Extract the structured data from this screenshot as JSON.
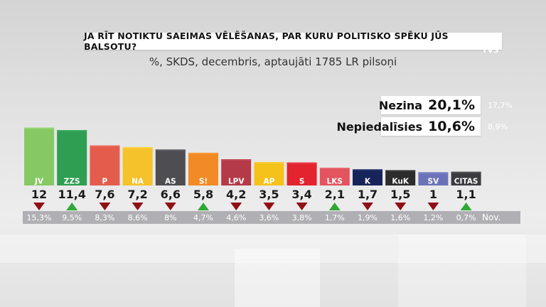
{
  "title": "JA RĪT NOTIKTU SAEIMAS VĒLĒŠANAS, PAR KURU POLITISKO SPĒKU JŪS BALSOTU?",
  "subtitle": "%, SKDS, decembris, aptaujāti 1785 LR pilsoņi",
  "logo": "TV3",
  "nezina": {
    "label": "Nezina",
    "value": "20,1%",
    "previous": "17,7%"
  },
  "nepiedalisies": {
    "label": "Nepiedalīsies",
    "value": "10,6%",
    "previous": "8,9%"
  },
  "prev_label": "Nov.",
  "colors": {
    "up": "#2fa834",
    "down": "#8f1116"
  },
  "chart_data": {
    "type": "bar",
    "categories": [
      "JV",
      "ZZS",
      "P",
      "NA",
      "AS",
      "S!",
      "LPV",
      "AP",
      "S",
      "LKS",
      "K",
      "KuK",
      "SV",
      "CITAS"
    ],
    "values": [
      12,
      11.4,
      7.6,
      7.2,
      6.6,
      5.8,
      4.2,
      3.5,
      3.4,
      2.1,
      1.7,
      1.5,
      1,
      1.1
    ],
    "value_labels": [
      "12",
      "11,4",
      "7,6",
      "7,2",
      "6,6",
      "5,8",
      "4,2",
      "3,5",
      "3,4",
      "2,1",
      "1,7",
      "1,5",
      "1",
      "1,1"
    ],
    "previous_labels": [
      "15,3%",
      "9,5%",
      "8,3%",
      "8,6%",
      "8%",
      "4,7%",
      "4,6%",
      "3,6%",
      "3,8%",
      "1,7%",
      "1,9%",
      "1,6%",
      "1,2%",
      "0,7%"
    ],
    "trend": [
      "down",
      "up",
      "down",
      "down",
      "down",
      "up",
      "down",
      "down",
      "down",
      "up",
      "down",
      "down",
      "down",
      "up"
    ],
    "colors": [
      "#86c964",
      "#2e9e52",
      "#e45c4c",
      "#f6c22b",
      "#4d4d52",
      "#f28a25",
      "#b53a47",
      "#f5c21c",
      "#e3232e",
      "#e3545e",
      "#16245a",
      "#2c2c2c",
      "#6b72b8",
      "#3b3b40"
    ],
    "top_colors": [
      "#96d472",
      "#37ac5c",
      "#ec6c5c",
      "#fbd13e",
      "#5c5c62",
      "#f79a3a",
      "#c24b58",
      "#fbcf32",
      "#ec3842",
      "#ea6670",
      "#24336d",
      "#3a3a3a",
      "#7c83c6",
      "#4a4a50"
    ]
  }
}
